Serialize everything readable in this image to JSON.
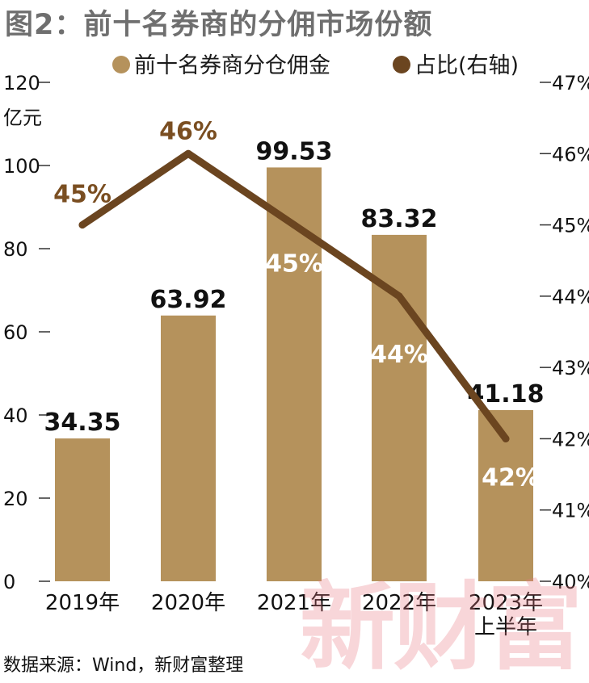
{
  "title": "图2：前十名券商的分佣市场份额",
  "source": "数据来源：Wind，新财富整理",
  "watermark": "新财富",
  "colors": {
    "bar": "#b5925c",
    "line": "#6b4520",
    "axis": "#333333"
  },
  "chart_data": {
    "type": "bar",
    "categories": [
      "2019年",
      "2020年",
      "2021年",
      "2022年",
      "2023年上半年"
    ],
    "category_lines": [
      [
        "2019年"
      ],
      [
        "2020年"
      ],
      [
        "2021年"
      ],
      [
        "2022年"
      ],
      [
        "2023年",
        "上半年"
      ]
    ],
    "series": [
      {
        "name": "前十名券商分仓佣金",
        "type": "bar",
        "axis": "left",
        "values": [
          34.35,
          63.92,
          99.53,
          83.32,
          41.18
        ],
        "labels": [
          "34.35",
          "63.92",
          "99.53",
          "83.32",
          "41.18"
        ]
      },
      {
        "name": "占比(右轴)",
        "type": "line",
        "axis": "right",
        "values": [
          45,
          46,
          45,
          44,
          42
        ],
        "labels": [
          "45%",
          "46%",
          "45%",
          "44%",
          "42%"
        ]
      }
    ],
    "y_left": {
      "unit": "亿元",
      "min": 0,
      "max": 120,
      "ticks": [
        "0",
        "20",
        "40",
        "60",
        "80",
        "100",
        "120"
      ]
    },
    "y_right": {
      "min": 40,
      "max": 47,
      "ticks": [
        "40%",
        "41%",
        "42%",
        "43%",
        "44%",
        "45%",
        "46%",
        "47%"
      ]
    },
    "legend_position": "top-center",
    "grid": false
  }
}
